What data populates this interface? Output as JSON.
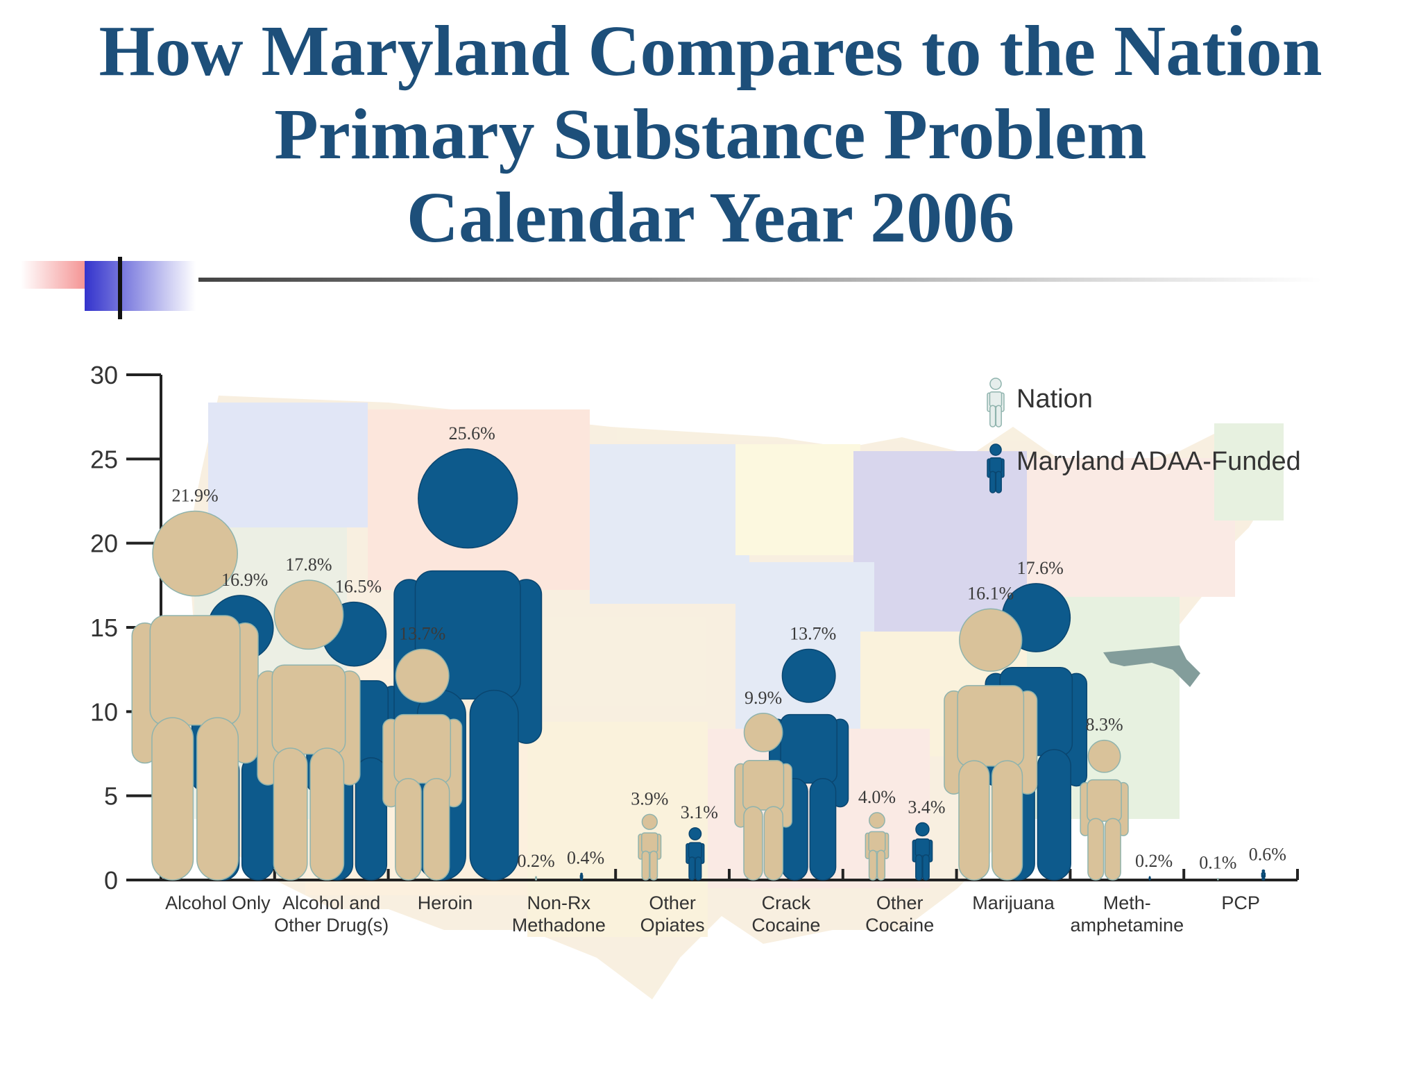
{
  "title_lines": [
    "How Maryland Compares to the Nation",
    "Primary Substance Problem",
    "Calendar Year 2006"
  ],
  "colors": {
    "title": "#1d4f7a",
    "nation": "#d9c29a",
    "nation_stroke": "#8fb3ad",
    "maryland": "#0d5a8c",
    "maryland_state": "#1f4e4a"
  },
  "chart_data": {
    "type": "bar",
    "ylim": [
      0,
      30
    ],
    "yticks": [
      0,
      5,
      10,
      15,
      20,
      25,
      30
    ],
    "categories": [
      "Alcohol Only",
      "Alcohol and\nOther Drug(s)",
      "Heroin",
      "Non-Rx\nMethadone",
      "Other\nOpiates",
      "Crack\nCocaine",
      "Other\nCocaine",
      "Marijuana",
      "Meth-\namphetamine",
      "PCP"
    ],
    "series": [
      {
        "name": "Nation",
        "values": [
          21.9,
          17.8,
          13.7,
          0.2,
          3.9,
          9.9,
          4.0,
          16.1,
          8.3,
          0.1
        ],
        "labels": [
          "21.9%",
          "17.8%",
          "13.7%",
          "0.2%",
          "3.9%",
          "9.9%",
          "4.0%",
          "16.1%",
          "8.3%",
          "0.1%"
        ]
      },
      {
        "name": "Maryland ADAA-Funded",
        "values": [
          16.9,
          16.5,
          25.6,
          0.4,
          3.1,
          13.7,
          3.4,
          17.6,
          0.2,
          0.6
        ],
        "labels": [
          "16.9%",
          "16.5%",
          "25.6%",
          "0.4%",
          "3.1%",
          "13.7%",
          "3.4%",
          "17.6%",
          "0.2%",
          "0.6%"
        ]
      }
    ],
    "legend": {
      "placement": "top-right",
      "entries": [
        "Nation",
        "Maryland ADAA-Funded"
      ]
    },
    "background": "US states map"
  }
}
